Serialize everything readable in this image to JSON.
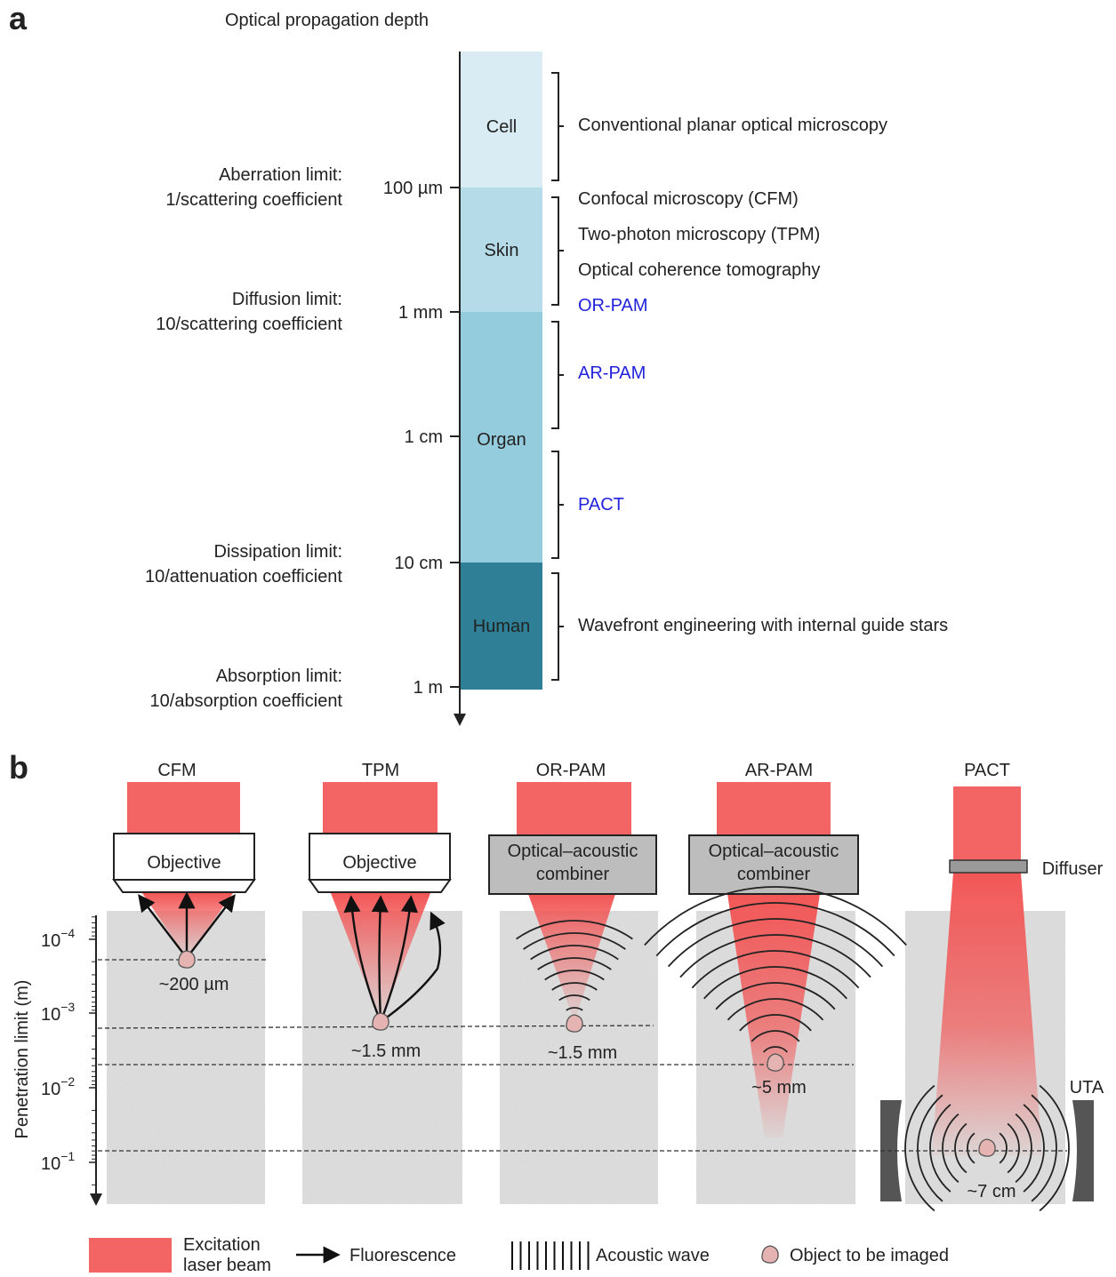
{
  "panel_a": {
    "label": "a",
    "title": "Optical propagation depth",
    "depth_ticks": [
      "100 µm",
      "1 mm",
      "1 cm",
      "10 cm",
      "1 m"
    ],
    "zones": [
      "Cell",
      "Skin",
      "Organ",
      "Human"
    ],
    "limits": [
      {
        "name": "Aberration limit:",
        "formula": "1/scattering coefficient"
      },
      {
        "name": "Diffusion limit:",
        "formula": "10/scattering coefficient"
      },
      {
        "name": "Dissipation limit:",
        "formula": "10/attenuation coefficient"
      },
      {
        "name": "Absorption limit:",
        "formula": "10/absorption coefficient"
      }
    ],
    "methods": [
      "Conventional planar optical microscopy",
      "Confocal microscopy (CFM)",
      "Two-photon microscopy (TPM)",
      "Optical coherence tomography",
      "OR-PAM",
      "AR-PAM",
      "PACT",
      "Wavefront engineering with internal guide stars"
    ]
  },
  "panel_b": {
    "label": "b",
    "columns": [
      {
        "title": "CFM",
        "device": [
          "Objective"
        ],
        "depth": "~200 µm"
      },
      {
        "title": "TPM",
        "device": [
          "Objective"
        ],
        "depth": "~1.5 mm"
      },
      {
        "title": "OR-PAM",
        "device": [
          "Optical–acoustic",
          "combiner"
        ],
        "depth": "~1.5 mm"
      },
      {
        "title": "AR-PAM",
        "device": [
          "Optical–acoustic",
          "combiner"
        ],
        "depth": "~5 mm"
      },
      {
        "title": "PACT",
        "device": [
          "Diffuser"
        ],
        "depth": "~7 cm"
      }
    ],
    "transducer": "UTA",
    "y_axis": {
      "label": "Penetration limit (m)",
      "ticks": [
        {
          "base": "10",
          "exp": "−4"
        },
        {
          "base": "10",
          "exp": "−3"
        },
        {
          "base": "10",
          "exp": "−2"
        },
        {
          "base": "10",
          "exp": "−1"
        }
      ]
    },
    "legend": {
      "laser": [
        "Excitation",
        "laser beam"
      ],
      "fluorescence": "Fluorescence",
      "acoustic": "Acoustic wave",
      "object": "Object to be imaged"
    }
  }
}
